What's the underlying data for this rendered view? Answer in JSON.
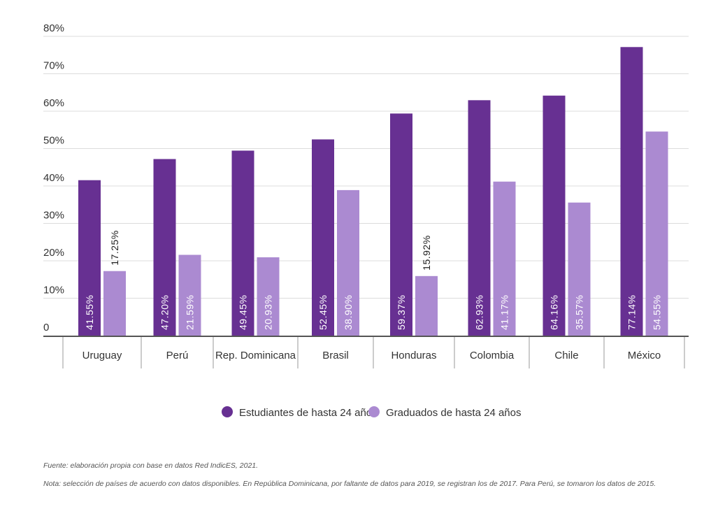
{
  "chart_data": {
    "type": "bar",
    "title": "",
    "xlabel": "",
    "ylabel": "",
    "ylim": [
      0,
      80
    ],
    "y_ticks": [
      {
        "value": 0,
        "label": "0"
      },
      {
        "value": 10,
        "label": "10%"
      },
      {
        "value": 20,
        "label": "20%"
      },
      {
        "value": 30,
        "label": "30%"
      },
      {
        "value": 40,
        "label": "40%"
      },
      {
        "value": 50,
        "label": "50%"
      },
      {
        "value": 60,
        "label": "60%"
      },
      {
        "value": 70,
        "label": "70%"
      },
      {
        "value": 80,
        "label": "80%"
      }
    ],
    "grid": true,
    "legend_position": "bottom-center",
    "categories": [
      "Uruguay",
      "Perú",
      "Rep. Dominicana",
      "Brasil",
      "Honduras",
      "Colombia",
      "Chile",
      "México"
    ],
    "series": [
      {
        "name": "Estudiantes de hasta 24 años",
        "color": "#673092",
        "values": [
          41.55,
          47.2,
          49.45,
          52.45,
          59.37,
          62.93,
          64.16,
          77.14
        ],
        "labels": [
          "41.55%",
          "47.20%",
          "49.45%",
          "52.45%",
          "59.37%",
          "62.93%",
          "64.16%",
          "77.14%"
        ]
      },
      {
        "name": "Graduados de hasta 24 años",
        "color": "#ab8ad1",
        "values": [
          17.25,
          21.59,
          20.93,
          38.9,
          15.92,
          41.17,
          35.57,
          54.55
        ],
        "labels": [
          "17.25%",
          "21.59%",
          "20.93%",
          "38.90%",
          "15.92%",
          "41.17%",
          "35.57%",
          "54.55%"
        ]
      }
    ]
  },
  "footnotes": {
    "source": "Fuente: elaboración propia con base en datos Red IndicES, 2021.",
    "note": "Nota: selección de países de acuerdo con datos disponibles. En República Dominicana, por faltante de datos para 2019, se registran los de 2017. Para Perú, se tomaron los datos de 2015."
  }
}
